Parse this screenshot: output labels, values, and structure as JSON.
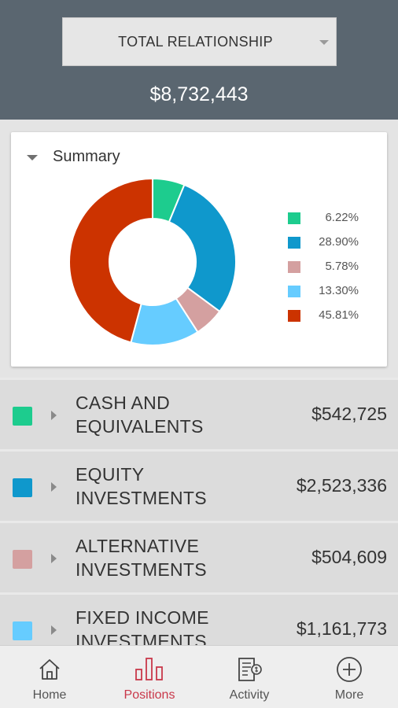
{
  "header": {
    "selector_label": "TOTAL RELATIONSHIP",
    "total_value": "$8,732,443"
  },
  "summary": {
    "title": "Summary",
    "legend": [
      {
        "pct": "6.22%",
        "color": "#1dcc8e"
      },
      {
        "pct": "28.90%",
        "color": "#0f98cc"
      },
      {
        "pct": "5.78%",
        "color": "#d4a0a0"
      },
      {
        "pct": "13.30%",
        "color": "#66ccff"
      },
      {
        "pct": "45.81%",
        "color": "#cc3300"
      }
    ]
  },
  "chart_data": {
    "type": "pie",
    "categories": [
      "CASH AND EQUIVALENTS",
      "EQUITY INVESTMENTS",
      "ALTERNATIVE INVESTMENTS",
      "FIXED INCOME INVESTMENTS",
      ""
    ],
    "values": [
      6.22,
      28.9,
      5.78,
      13.3,
      45.81
    ],
    "colors": [
      "#1dcc8e",
      "#0f98cc",
      "#d4a0a0",
      "#66ccff",
      "#cc3300"
    ],
    "donut": true,
    "legend_position": "right"
  },
  "positions": [
    {
      "name": "CASH AND EQUIVALENTS",
      "amount": "$542,725",
      "color": "#1dcc8e"
    },
    {
      "name": "EQUITY INVESTMENTS",
      "amount": "$2,523,336",
      "color": "#0f98cc"
    },
    {
      "name": "ALTERNATIVE INVESTMENTS",
      "amount": "$504,609",
      "color": "#d4a0a0"
    },
    {
      "name": "FIXED INCOME INVESTMENTS",
      "amount": "$1,161,773",
      "color": "#66ccff"
    }
  ],
  "tabs": [
    {
      "label": "Home",
      "icon": "home-icon",
      "active": false
    },
    {
      "label": "Positions",
      "icon": "bar-chart-icon",
      "active": true
    },
    {
      "label": "Activity",
      "icon": "statement-icon",
      "active": false
    },
    {
      "label": "More",
      "icon": "plus-circle-icon",
      "active": false
    }
  ],
  "colors": {
    "header_bg": "#5a6670",
    "active_tab": "#c9384a"
  }
}
